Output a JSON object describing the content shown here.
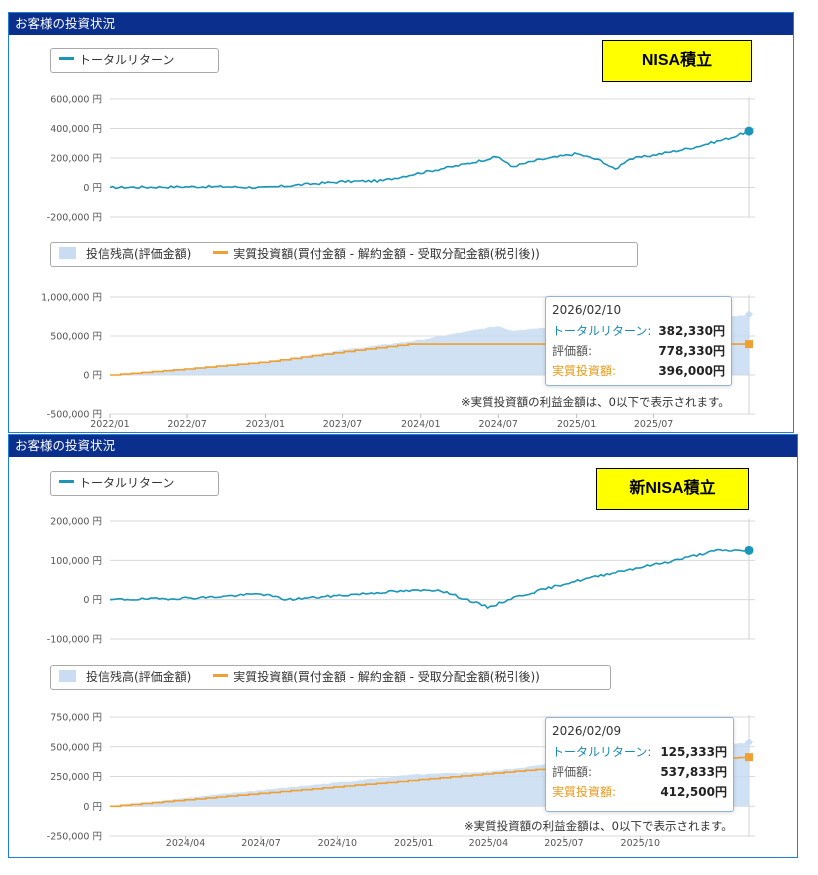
{
  "colors": {
    "header_bg": "#0b2f8c",
    "total_return": "#1a96b8",
    "valuation_fill": "#c9dcf2",
    "net_investment": "#f0a030",
    "tag_bg": "#ffff00"
  },
  "panels": [
    {
      "header": "お客様の投資状況",
      "tag": "NISA積立",
      "legend_top": {
        "total_return": "トータルリターン"
      },
      "legend_bottom": {
        "valuation": "投信残高(評価金額)",
        "net_investment": "実質投資額(買付金額 - 解約金額 - 受取分配金額(税引後))"
      },
      "tooltip": {
        "date": "2026/02/10",
        "total_return_label": "トータルリターン:",
        "total_return_value": "382,330円",
        "valuation_label": "評価額:",
        "valuation_value": "778,330円",
        "net_investment_label": "実質投資額:",
        "net_investment_value": "396,000円"
      },
      "note": "※実質投資額の利益金額は、0以下で表示されます。"
    },
    {
      "header": "お客様の投資状況",
      "tag": "新NISA積立",
      "legend_top": {
        "total_return": "トータルリターン"
      },
      "legend_bottom": {
        "valuation": "投信残高(評価金額)",
        "net_investment": "実質投資額(買付金額 - 解約金額 - 受取分配金額(税引後))"
      },
      "tooltip": {
        "date": "2026/02/09",
        "total_return_label": "トータルリターン:",
        "total_return_value": "125,333円",
        "valuation_label": "評価額:",
        "valuation_value": "537,833円",
        "net_investment_label": "実質投資額:",
        "net_investment_value": "412,500円"
      },
      "note": "※実質投資額の利益金額は、0以下で表示されます。"
    }
  ],
  "chart_data": [
    {
      "type": "line",
      "series": [
        {
          "name": "トータルリターン",
          "x": [
            "2022/01",
            "2022/04",
            "2022/07",
            "2022/10",
            "2023/01",
            "2023/04",
            "2023/07",
            "2023/10",
            "2024/01",
            "2024/04",
            "2024/07",
            "2024/08",
            "2024/10",
            "2025/01",
            "2025/03",
            "2025/04",
            "2025/05",
            "2025/07",
            "2025/10",
            "2026/01",
            "2026/02/10"
          ],
          "values": [
            0,
            2000,
            5000,
            5000,
            -2000,
            20000,
            40000,
            45000,
            100000,
            150000,
            210000,
            140000,
            185000,
            230000,
            180000,
            120000,
            190000,
            220000,
            270000,
            340000,
            382330
          ]
        }
      ],
      "yticks": [
        "600,000 円",
        "400,000 円",
        "200,000 円",
        "0 円",
        "-200,000 円"
      ],
      "ylim": [
        -200000,
        600000
      ]
    },
    {
      "type": "area",
      "series": [
        {
          "name": "投信残高(評価金額)",
          "x": [
            "2022/01",
            "2022/07",
            "2023/01",
            "2023/07",
            "2024/01",
            "2024/04",
            "2024/07",
            "2024/08",
            "2024/10",
            "2025/01",
            "2025/03",
            "2025/04",
            "2025/07",
            "2025/10",
            "2026/02/10"
          ],
          "values": [
            0,
            85000,
            165000,
            320000,
            450000,
            540000,
            630000,
            570000,
            600000,
            640000,
            560000,
            510000,
            630000,
            690000,
            778330
          ]
        },
        {
          "name": "実質投資額(買付金額 - 解約金額 - 受取分配金額(税引後))",
          "x": [
            "2022/01",
            "2022/07",
            "2023/01",
            "2023/07",
            "2023/12",
            "2024/01",
            "2026/02/10"
          ],
          "values": [
            0,
            80000,
            170000,
            300000,
            396000,
            396000,
            396000
          ]
        }
      ],
      "yticks": [
        "1,000,000 円",
        "500,000 円",
        "0 円",
        "-500,000 円"
      ],
      "xticks": [
        "2022/01",
        "2022/07",
        "2023/01",
        "2023/07",
        "2024/01",
        "2024/07",
        "2025/01",
        "2025/07"
      ],
      "ylim": [
        -500000,
        1000000
      ]
    },
    {
      "type": "line",
      "series": [
        {
          "name": "トータルリターン",
          "x": [
            "2024/01",
            "2024/03",
            "2024/05",
            "2024/07",
            "2024/08",
            "2024/10",
            "2024/12",
            "2025/02",
            "2025/04",
            "2025/05",
            "2025/07",
            "2025/09",
            "2025/11",
            "2026/01",
            "2026/02/09"
          ],
          "values": [
            0,
            2000,
            6000,
            15000,
            0,
            10000,
            20000,
            25000,
            -20000,
            5000,
            40000,
            70000,
            95000,
            125000,
            125333
          ]
        }
      ],
      "yticks": [
        "200,000 円",
        "100,000 円",
        "0 円",
        "-100,000 円"
      ],
      "ylim": [
        -100000,
        200000
      ]
    },
    {
      "type": "area",
      "series": [
        {
          "name": "投信残高(評価金額)",
          "x": [
            "2024/01",
            "2024/04",
            "2024/07",
            "2024/10",
            "2025/01",
            "2025/04",
            "2025/07",
            "2025/10",
            "2026/02/09"
          ],
          "values": [
            0,
            70000,
            135000,
            200000,
            265000,
            290000,
            370000,
            460000,
            537833
          ]
        },
        {
          "name": "実質投資額(買付金額 - 解約金額 - 受取分配金額(税引後))",
          "x": [
            "2024/01",
            "2024/04",
            "2024/07",
            "2024/10",
            "2025/01",
            "2025/04",
            "2025/07",
            "2025/10",
            "2026/02/09"
          ],
          "values": [
            0,
            55000,
            110000,
            165000,
            220000,
            275000,
            330000,
            375000,
            412500
          ]
        }
      ],
      "yticks": [
        "750,000 円",
        "500,000 円",
        "250,000 円",
        "0 円",
        "-250,000 円"
      ],
      "xticks": [
        "2024/04",
        "2024/07",
        "2024/10",
        "2025/01",
        "2025/04",
        "2025/07",
        "2025/10"
      ],
      "ylim": [
        -250000,
        750000
      ]
    }
  ]
}
